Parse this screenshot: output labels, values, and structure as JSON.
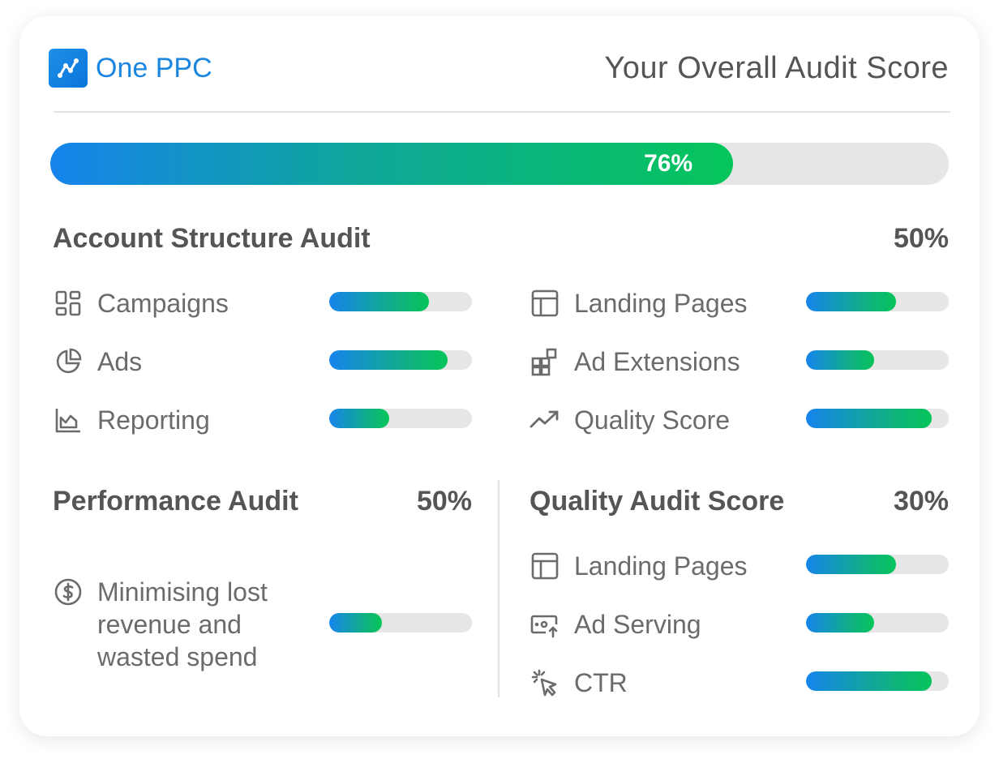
{
  "header": {
    "brand": "One PPC",
    "title": "Your Overall Audit Score"
  },
  "overall": {
    "percent_label": "76%",
    "value": 0.76
  },
  "account_structure": {
    "title": "Account Structure Audit",
    "percent_label": "50%",
    "left_items": [
      {
        "label": "Campaigns",
        "icon": "dashboard-grid-icon",
        "value": 0.7
      },
      {
        "label": "Ads",
        "icon": "pie-chart-icon",
        "value": 0.83
      },
      {
        "label": "Reporting",
        "icon": "area-chart-icon",
        "value": 0.42
      }
    ],
    "right_items": [
      {
        "label": "Landing Pages",
        "icon": "layout-icon",
        "value": 0.63
      },
      {
        "label": "Ad Extensions",
        "icon": "widgets-icon",
        "value": 0.48
      },
      {
        "label": "Quality Score",
        "icon": "trending-up-icon",
        "value": 0.88
      }
    ]
  },
  "performance": {
    "title": "Performance Audit",
    "percent_label": "50%",
    "items": [
      {
        "label": "Minimising lost revenue and wasted spend",
        "icon": "dollar-circle-icon",
        "value": 0.37
      }
    ]
  },
  "quality": {
    "title": "Quality Audit Score",
    "percent_label": "30%",
    "items": [
      {
        "label": "Landing Pages",
        "icon": "layout-icon",
        "value": 0.63
      },
      {
        "label": "Ad Serving",
        "icon": "ad-serving-icon",
        "value": 0.48
      },
      {
        "label": "CTR",
        "icon": "click-cursor-icon",
        "value": 0.88
      }
    ]
  },
  "colors": {
    "brand": "#1a86e0",
    "gradient_start": "#1684ec",
    "gradient_end": "#05c55a",
    "track": "#e6e6e6"
  }
}
